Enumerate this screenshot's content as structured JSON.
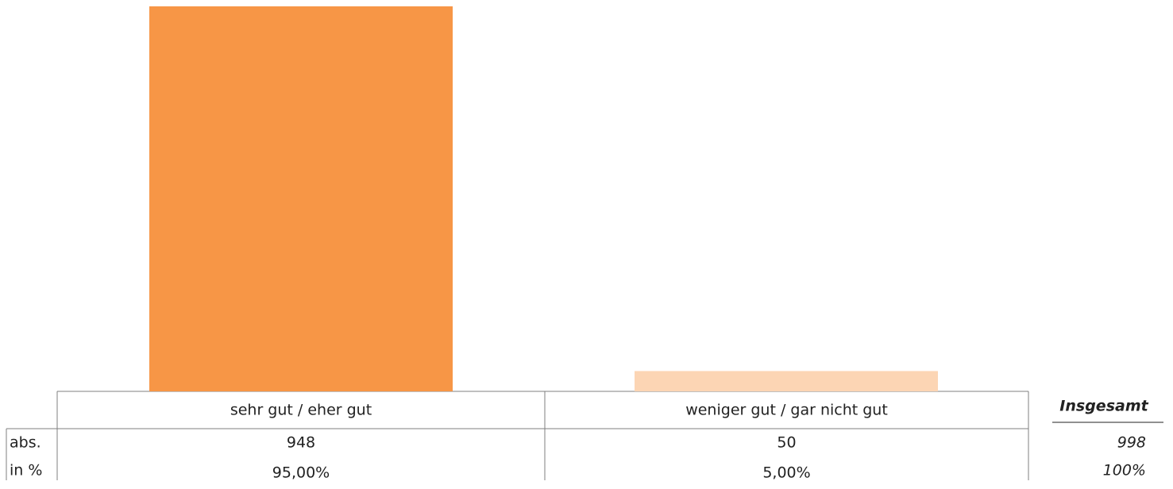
{
  "chart_data": {
    "type": "bar",
    "categories": [
      "sehr gut / eher gut",
      "weniger gut / gar nicht gut"
    ],
    "colors": [
      "#f79646",
      "#fcd5b4"
    ],
    "series": [
      {
        "name": "abs.",
        "values": [
          948,
          50
        ]
      },
      {
        "name": "in %",
        "values": [
          95,
          5
        ],
        "value_labels": [
          "95,00%",
          "5,00%"
        ]
      }
    ],
    "total": {
      "label": "Insgesamt",
      "values": [
        998,
        100
      ],
      "value_labels": [
        "998",
        "100%"
      ]
    }
  }
}
